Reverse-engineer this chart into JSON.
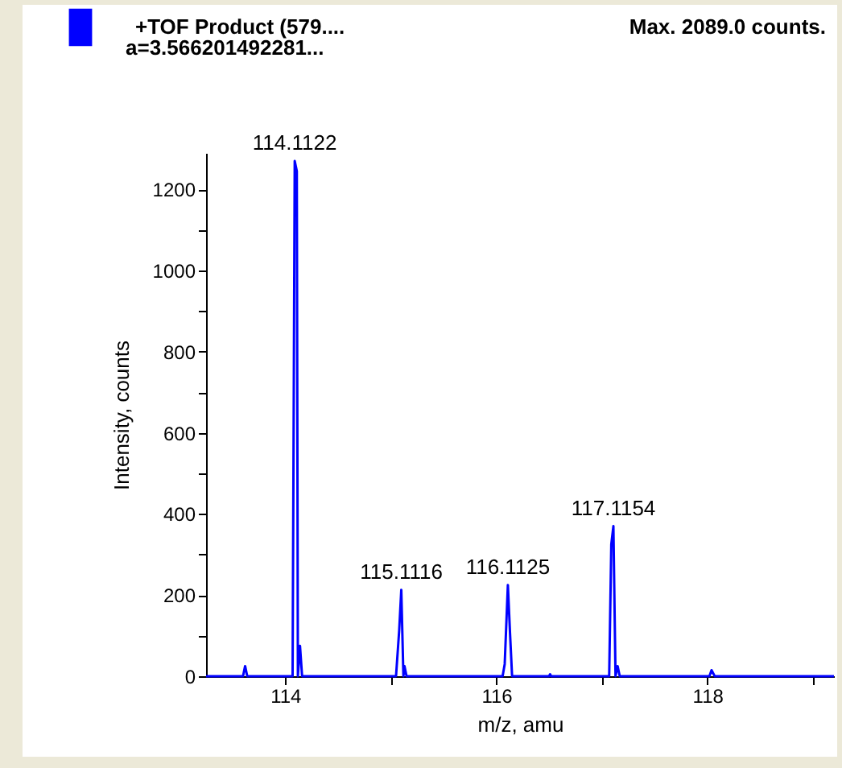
{
  "chart_data": {
    "type": "line",
    "xlabel": "m/z, amu",
    "ylabel": "Intensity, counts",
    "annotations": [
      "a=3.566201492281...",
      "Max. 2089.0 counts.",
      {
        "text": "114.1122",
        "x": 114.09,
        "y": 1270
      },
      {
        "text": "115.1116",
        "x": 115.1,
        "y": 213
      },
      {
        "text": "116.1125",
        "x": 116.11,
        "y": 225
      },
      {
        "text": "117.1154",
        "x": 117.11,
        "y": 370
      }
    ],
    "x": [
      113.25,
      113.6,
      113.62,
      113.64,
      114.07,
      114.09,
      114.11,
      114.12,
      114.14,
      114.16,
      115.05,
      115.08,
      115.1,
      115.12,
      115.13,
      115.15,
      116.06,
      116.08,
      116.11,
      116.13,
      116.15,
      116.5,
      116.51,
      116.52,
      117.07,
      117.09,
      117.11,
      117.13,
      117.15,
      117.17,
      118.02,
      118.04,
      118.07,
      119.2
    ],
    "series": [
      {
        "name": "+TOF Product (579....",
        "color": "#0000ff",
        "values": [
          0,
          0,
          25,
          0,
          0,
          1270,
          1245,
          0,
          75,
          0,
          0,
          113,
          213,
          0,
          25,
          0,
          0,
          30,
          225,
          108,
          0,
          0,
          5,
          0,
          0,
          325,
          370,
          0,
          25,
          0,
          0,
          15,
          0,
          0
        ]
      }
    ],
    "xlim": [
      113.25,
      119.2
    ],
    "ylim": [
      0,
      1290
    ],
    "xticks": [
      114,
      {
        "value": 115,
        "label": null
      },
      116,
      {
        "value": 117,
        "label": null
      },
      118,
      {
        "value": 119,
        "label": null
      }
    ],
    "yticks": [
      0,
      {
        "value": 100,
        "label": null
      },
      200,
      {
        "value": 300,
        "label": null
      },
      400,
      {
        "value": 500,
        "label": null
      },
      600,
      {
        "value": 700,
        "label": null
      },
      800,
      {
        "value": 900,
        "label": null
      },
      1000,
      {
        "value": 1100,
        "label": null
      },
      1200
    ],
    "grid": false,
    "legend": "top left",
    "marker": "none",
    "line_style": "solid"
  }
}
